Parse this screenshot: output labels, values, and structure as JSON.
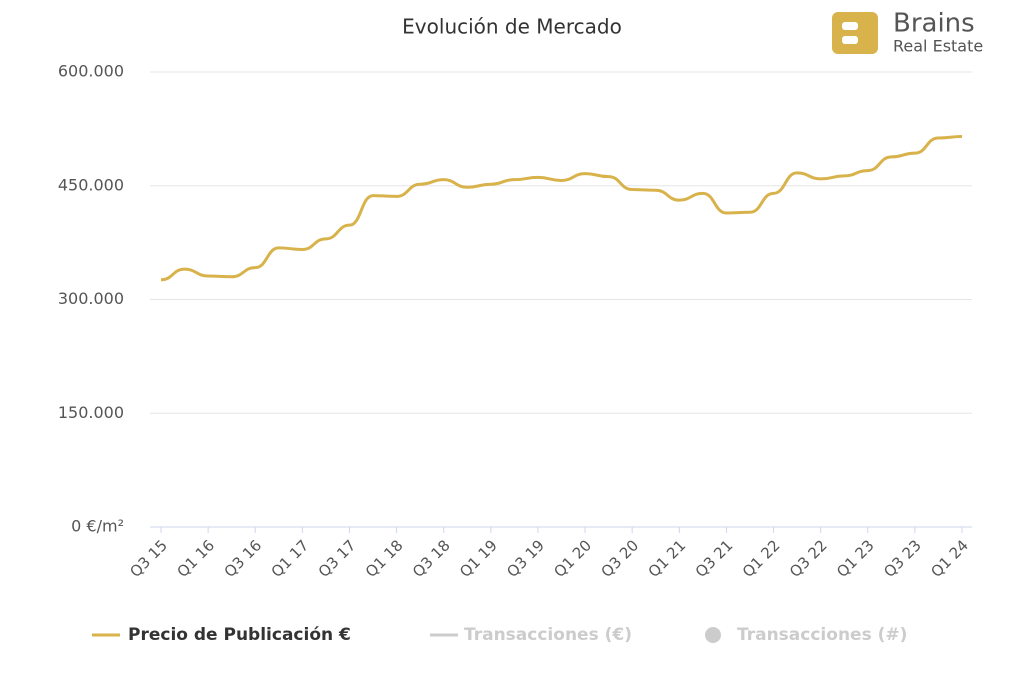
{
  "chart_data": {
    "type": "line",
    "title": "Evolución de Mercado",
    "logo": {
      "name": "Brains",
      "tagline": "Real Estate"
    },
    "categories": [
      "Q3 15",
      null,
      "Q1 16",
      null,
      "Q3 16",
      null,
      "Q1 17",
      null,
      "Q3 17",
      null,
      "Q1 18",
      null,
      "Q3 18",
      null,
      "Q1 19",
      null,
      "Q3 19",
      null,
      "Q1 20",
      null,
      "Q3 20",
      null,
      "Q1 21",
      null,
      "Q3 21",
      null,
      "Q1 22",
      null,
      "Q3 22",
      null,
      "Q1 23",
      null,
      "Q3 23",
      null,
      "Q1 24"
    ],
    "series": [
      {
        "name": "Precio de Publicación €",
        "color": "#d8b24a",
        "values": [
          326000,
          340000,
          331000,
          330000,
          342000,
          368000,
          366000,
          380000,
          398000,
          437000,
          436000,
          452000,
          458000,
          448000,
          452000,
          458000,
          461000,
          457000,
          466000,
          462000,
          445000,
          444000,
          431000,
          440000,
          414000,
          415000,
          440000,
          467000,
          459000,
          463000,
          470000,
          488000,
          493000,
          513000,
          515000
        ]
      }
    ],
    "legend_inactive": [
      {
        "name": "Transacciones (€)",
        "color": "#cccccc",
        "marker": "line"
      },
      {
        "name": "Transacciones (#)",
        "color": "#cccccc",
        "marker": "circle"
      }
    ],
    "ylim": [
      0,
      600000
    ],
    "yticks": [
      {
        "value": 0,
        "label": "0 €/m²"
      },
      {
        "value": 150000,
        "label": "150.000"
      },
      {
        "value": 300000,
        "label": "300.000"
      },
      {
        "value": 450000,
        "label": "450.000"
      },
      {
        "value": 600000,
        "label": "600.000"
      }
    ],
    "grid": true
  }
}
